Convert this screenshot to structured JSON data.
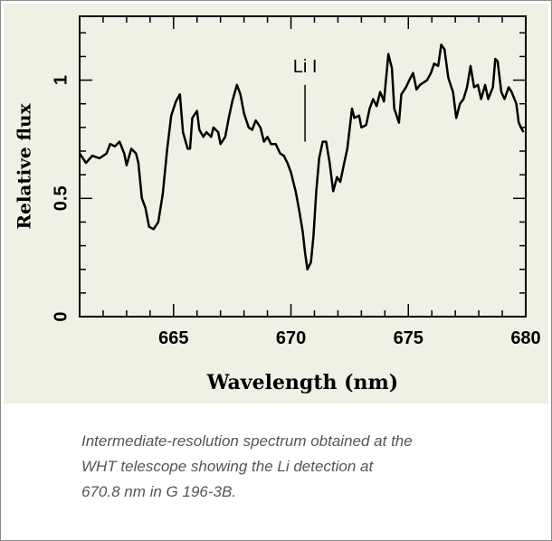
{
  "chart_data": {
    "type": "line",
    "xlabel": "Wavelength (nm)",
    "ylabel": "Relative flux",
    "x": [
      661.0,
      661.27,
      661.54,
      661.85,
      662.15,
      662.3,
      662.5,
      662.7,
      662.9,
      663.0,
      663.2,
      663.4,
      663.5,
      663.65,
      663.8,
      663.96,
      664.15,
      664.35,
      664.54,
      664.73,
      664.9,
      665.1,
      665.27,
      665.4,
      665.6,
      665.7,
      665.8,
      666.0,
      666.1,
      666.27,
      666.4,
      666.6,
      666.7,
      666.9,
      667.0,
      667.2,
      667.35,
      667.5,
      667.7,
      667.85,
      668.0,
      668.2,
      668.35,
      668.5,
      668.7,
      668.85,
      669.0,
      669.15,
      669.35,
      669.54,
      669.7,
      669.85,
      670.0,
      670.2,
      670.35,
      670.5,
      670.6,
      670.7,
      670.85,
      670.96,
      671.08,
      671.2,
      671.35,
      671.5,
      671.65,
      671.8,
      671.96,
      672.1,
      672.27,
      672.4,
      672.6,
      672.7,
      672.9,
      673.0,
      673.2,
      673.35,
      673.5,
      673.65,
      673.8,
      673.96,
      674.15,
      674.3,
      674.4,
      674.6,
      674.7,
      674.9,
      675.04,
      675.2,
      675.35,
      675.5,
      675.65,
      675.8,
      675.96,
      676.1,
      676.27,
      676.4,
      676.54,
      676.7,
      676.9,
      677.04,
      677.2,
      677.35,
      677.5,
      677.65,
      677.8,
      677.96,
      678.1,
      678.27,
      678.4,
      678.6,
      678.7,
      678.8,
      678.96,
      679.1,
      679.27,
      679.4,
      679.6,
      679.7,
      679.9
    ],
    "series": [
      {
        "color": "#000000",
        "values": [
          0.69,
          0.65,
          0.68,
          0.67,
          0.69,
          0.73,
          0.72,
          0.74,
          0.69,
          0.64,
          0.71,
          0.69,
          0.65,
          0.5,
          0.46,
          0.38,
          0.37,
          0.4,
          0.52,
          0.71,
          0.85,
          0.91,
          0.94,
          0.78,
          0.71,
          0.71,
          0.84,
          0.87,
          0.79,
          0.76,
          0.78,
          0.76,
          0.8,
          0.78,
          0.73,
          0.76,
          0.84,
          0.91,
          0.98,
          0.94,
          0.86,
          0.8,
          0.79,
          0.83,
          0.8,
          0.74,
          0.76,
          0.73,
          0.73,
          0.69,
          0.68,
          0.65,
          0.61,
          0.53,
          0.45,
          0.36,
          0.27,
          0.2,
          0.23,
          0.34,
          0.53,
          0.67,
          0.74,
          0.74,
          0.65,
          0.53,
          0.59,
          0.57,
          0.65,
          0.71,
          0.88,
          0.84,
          0.85,
          0.8,
          0.81,
          0.88,
          0.92,
          0.89,
          0.95,
          0.91,
          1.11,
          1.05,
          0.88,
          0.82,
          0.94,
          0.97,
          1.0,
          1.03,
          0.96,
          0.98,
          0.99,
          1.0,
          1.03,
          1.07,
          1.06,
          1.15,
          1.13,
          1.01,
          0.95,
          0.84,
          0.9,
          0.92,
          0.97,
          1.06,
          0.97,
          0.98,
          0.92,
          0.98,
          0.92,
          0.97,
          1.09,
          1.08,
          0.95,
          0.92,
          0.97,
          0.95,
          0.9,
          0.82,
          0.78
        ]
      }
    ],
    "xlim": [
      661,
      680
    ],
    "ylim": [
      0,
      1.27
    ],
    "xticks": [
      665,
      670,
      675,
      680
    ],
    "yticks": [
      0,
      0.5,
      1
    ],
    "x_minor_ticks": [
      662,
      663,
      664,
      666,
      667,
      668,
      669,
      671,
      672,
      673,
      674,
      676,
      677,
      678,
      679
    ],
    "y_minor_ticks": [
      0.1,
      0.2,
      0.3,
      0.4,
      0.6,
      0.7,
      0.8,
      0.9,
      1.1,
      1.2
    ],
    "annotation": {
      "text": "Li I",
      "x": 670.6,
      "y_start": 0.74,
      "y_end": 0.98
    },
    "caption_lines": [
      "Intermediate-resolution spectrum obtained at the",
      "WHT telescope showing the Li detection at",
      "670.8 nm in G 196-3B."
    ]
  }
}
